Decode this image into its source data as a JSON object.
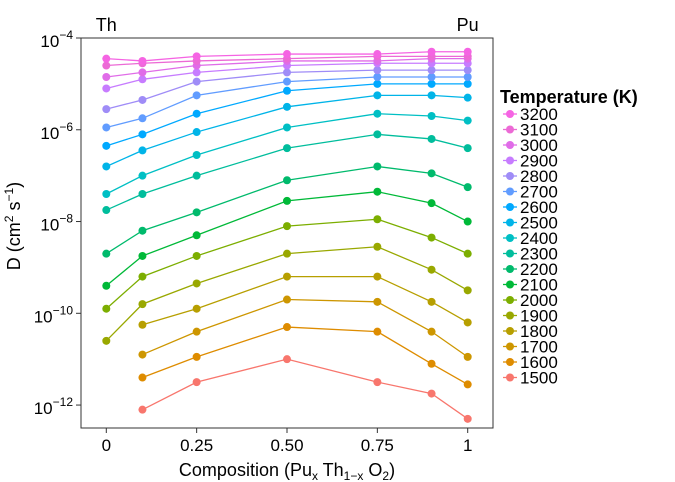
{
  "chart_data": {
    "type": "line",
    "xlabel": "Composition (Pu",
    "xlabel_sub1": "x",
    "xlabel_mid": " Th",
    "xlabel_sub2": "1−x",
    "xlabel_mid2": " O",
    "xlabel_sub3": "2",
    "xlabel_end": ")",
    "ylabel": "D (cm",
    "ylabel_sup1": "2",
    "ylabel_mid": " s",
    "ylabel_sup2": "−1",
    "ylabel_end": ")",
    "y_scale": "log",
    "ylim": [
      -12.5,
      -4
    ],
    "xlim": [
      -0.07,
      1.07
    ],
    "x_ticks": [
      0,
      0.25,
      0.5,
      0.75,
      1
    ],
    "x_tick_labels": [
      "0",
      "0.25",
      "0.50",
      "0.75",
      "1"
    ],
    "y_ticks": [
      -12,
      -10,
      -8,
      -6,
      -4
    ],
    "y_tick_base": "10",
    "y_tick_exponents": [
      "−12",
      "−10",
      "−8",
      "−6",
      "−4"
    ],
    "top_labels": [
      {
        "x": 0,
        "text": "Th"
      },
      {
        "x": 1,
        "text": "Pu"
      }
    ],
    "grid": false,
    "legend": {
      "title": "Temperature (K)",
      "position": "right"
    },
    "x": [
      0,
      0.1,
      0.25,
      0.5,
      0.75,
      0.9,
      1
    ],
    "series": [
      {
        "name": "3200",
        "color": "#F564E3",
        "log10_values": [
          -4.45,
          -4.5,
          -4.4,
          -4.35,
          -4.35,
          -4.3,
          -4.3
        ]
      },
      {
        "name": "3100",
        "color": "#EC6AD5",
        "log10_values": [
          -4.6,
          -4.55,
          -4.5,
          -4.45,
          -4.4,
          -4.4,
          -4.4
        ]
      },
      {
        "name": "3000",
        "color": "#E06CE8",
        "log10_values": [
          -4.85,
          -4.75,
          -4.6,
          -4.5,
          -4.5,
          -4.45,
          -4.45
        ]
      },
      {
        "name": "2900",
        "color": "#C77CFF",
        "log10_values": [
          -5.1,
          -4.9,
          -4.75,
          -4.6,
          -4.55,
          -4.55,
          -4.55
        ]
      },
      {
        "name": "2800",
        "color": "#9F8CF7",
        "log10_values": [
          -5.55,
          -5.35,
          -4.95,
          -4.75,
          -4.7,
          -4.7,
          -4.7
        ]
      },
      {
        "name": "2700",
        "color": "#619CFF",
        "log10_values": [
          -5.95,
          -5.75,
          -5.25,
          -4.95,
          -4.85,
          -4.85,
          -4.85
        ]
      },
      {
        "name": "2600",
        "color": "#00A9FF",
        "log10_values": [
          -6.35,
          -6.1,
          -5.65,
          -5.15,
          -5.0,
          -5.0,
          -5.0
        ]
      },
      {
        "name": "2500",
        "color": "#00B4E8",
        "log10_values": [
          -6.8,
          -6.45,
          -6.05,
          -5.5,
          -5.25,
          -5.25,
          -5.3
        ]
      },
      {
        "name": "2400",
        "color": "#00BFC4",
        "log10_values": [
          -7.4,
          -7.0,
          -6.55,
          -5.95,
          -5.65,
          -5.7,
          -5.8
        ]
      },
      {
        "name": "2300",
        "color": "#00BD9C",
        "log10_values": [
          -7.75,
          -7.4,
          -7.0,
          -6.4,
          -6.1,
          -6.2,
          -6.4
        ]
      },
      {
        "name": "2200",
        "color": "#00BA6C",
        "log10_values": [
          -8.7,
          -8.2,
          -7.8,
          -7.1,
          -6.8,
          -6.95,
          -7.25
        ]
      },
      {
        "name": "2100",
        "color": "#00B938",
        "log10_values": [
          -9.4,
          -8.75,
          -8.3,
          -7.55,
          -7.35,
          -7.6,
          -8.0
        ]
      },
      {
        "name": "2000",
        "color": "#7CAE00",
        "log10_values": [
          -9.9,
          -9.2,
          -8.75,
          -8.1,
          -7.95,
          -8.35,
          -8.7
        ]
      },
      {
        "name": "1900",
        "color": "#99A800",
        "log10_values": [
          -10.6,
          -9.8,
          -9.35,
          -8.7,
          -8.55,
          -9.05,
          -9.5
        ]
      },
      {
        "name": "1800",
        "color": "#B79F00",
        "log10_values": [
          null,
          -10.25,
          -9.9,
          -9.2,
          -9.2,
          -9.75,
          -10.2
        ]
      },
      {
        "name": "1700",
        "color": "#CD9600",
        "log10_values": [
          null,
          -10.9,
          -10.4,
          -9.7,
          -9.75,
          -10.4,
          -10.95
        ]
      },
      {
        "name": "1600",
        "color": "#DE8C00",
        "log10_values": [
          null,
          -11.4,
          -10.95,
          -10.3,
          -10.4,
          -11.1,
          -11.55
        ]
      },
      {
        "name": "1500",
        "color": "#F8766D",
        "log10_values": [
          null,
          -12.1,
          -11.5,
          -11.0,
          -11.5,
          -11.75,
          -12.3
        ]
      }
    ]
  }
}
